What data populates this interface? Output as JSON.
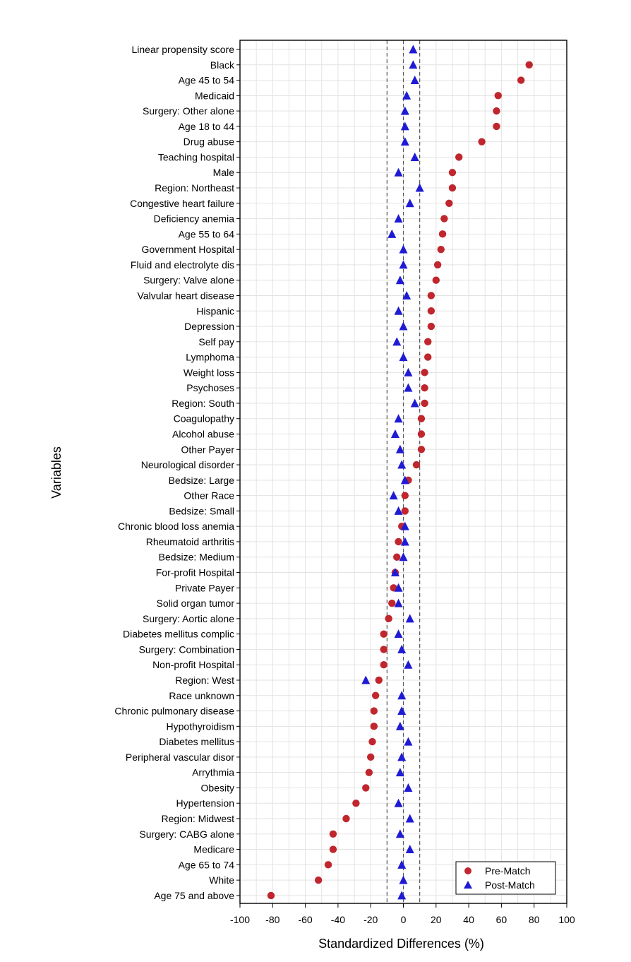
{
  "chart_data": {
    "type": "scatter",
    "title": "",
    "xlabel": "Standardized Differences (%)",
    "ylabel": "Variables",
    "xlim": [
      -100,
      100
    ],
    "x_ticks": [
      "-100",
      "-80",
      "-60",
      "-40",
      "-20",
      "0",
      "20",
      "40",
      "60",
      "80",
      "100"
    ],
    "x_tick_values": [
      -100,
      -80,
      -60,
      -40,
      -20,
      0,
      20,
      40,
      60,
      80,
      100
    ],
    "reference_lines": [
      -10,
      0,
      10
    ],
    "grid": true,
    "legend_position": "bottom-right",
    "categories": [
      "Linear propensity score",
      "Black",
      "Age 45 to 54",
      "Medicaid",
      "Surgery: Other alone",
      "Age 18 to 44",
      "Drug abuse",
      "Teaching hospital",
      "Male",
      "Region: Northeast",
      "Congestive heart failure",
      "Deficiency anemia",
      "Age 55 to 64",
      "Government Hospital",
      "Fluid and electrolyte dis",
      "Surgery: Valve alone",
      "Valvular heart disease",
      "Hispanic",
      "Depression",
      "Self pay",
      "Lymphoma",
      "Weight loss",
      "Psychoses",
      "Region: South",
      "Coagulopathy",
      "Alcohol abuse",
      "Other Payer",
      "Neurological disorder",
      "Bedsize: Large",
      "Other Race",
      "Bedsize: Small",
      "Chronic blood loss anemia",
      "Rheumatoid arthritis",
      "Bedsize: Medium",
      "For-profit Hospital",
      "Private Payer",
      "Solid organ tumor",
      "Surgery: Aortic alone",
      "Diabetes mellitus complic",
      "Surgery: Combination",
      "Non-profit Hospital",
      "Region: West",
      "Race unknown",
      "Chronic pulmonary disease",
      "Hypothyroidism",
      "Diabetes mellitus",
      "Peripheral vascular disor",
      "Arrythmia",
      "Obesity",
      "Hypertension",
      "Region: Midwest",
      "Surgery: CABG alone",
      "Medicare",
      "Age 65 to 74",
      "White",
      "Age 75 and above"
    ],
    "series": [
      {
        "name": "Pre-Match",
        "marker": "circle",
        "color": "#c0262d",
        "values": [
          null,
          77,
          72,
          58,
          57,
          57,
          48,
          34,
          30,
          30,
          28,
          25,
          24,
          23,
          21,
          20,
          17,
          17,
          17,
          15,
          15,
          13,
          13,
          13,
          11,
          11,
          11,
          8,
          3,
          1,
          1,
          -1,
          -3,
          -4,
          -5,
          -6,
          -7,
          -9,
          -12,
          -12,
          -12,
          -15,
          -17,
          -18,
          -18,
          -19,
          -20,
          -21,
          -23,
          -29,
          -35,
          -43,
          -43,
          -46,
          -52,
          -81
        ]
      },
      {
        "name": "Post-Match",
        "marker": "triangle",
        "color": "#1f1bd4",
        "values": [
          6,
          6,
          7,
          2,
          1,
          1,
          1,
          7,
          -3,
          10,
          4,
          -3,
          -7,
          0,
          0,
          -2,
          2,
          -3,
          0,
          -4,
          0,
          3,
          3,
          7,
          -3,
          -5,
          -2,
          -1,
          1,
          -6,
          -3,
          1,
          1,
          0,
          -5,
          -3,
          -3,
          4,
          -3,
          -1,
          3,
          -23,
          -1,
          -1,
          -2,
          3,
          -1,
          -2,
          3,
          -3,
          4,
          -2,
          4,
          -1,
          0,
          -1
        ]
      }
    ]
  }
}
